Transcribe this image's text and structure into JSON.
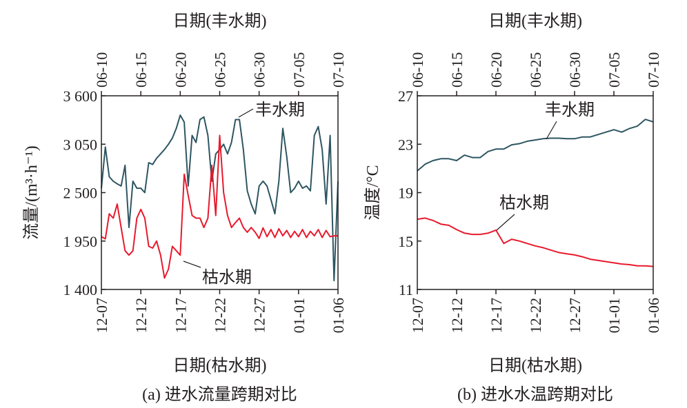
{
  "chart_data": [
    {
      "type": "line",
      "caption": "(a) 进水流量跨期对比",
      "ylabel": "流量/(m³·h⁻¹)",
      "xlabel_bottom": "日期(枯水期)",
      "xlabel_top": "日期(丰水期)",
      "ylim": [
        1400,
        3600
      ],
      "yticks": [
        1400,
        1950,
        2500,
        3050,
        3600
      ],
      "ytick_labels": [
        "1 400",
        "1 950",
        "2 500",
        "3 050",
        "3 600"
      ],
      "xlim_days": [
        0,
        30
      ],
      "xtick_days": [
        0,
        5,
        10,
        15,
        20,
        25,
        30
      ],
      "xtick_labels_top": [
        "06-10",
        "06-15",
        "06-20",
        "06-25",
        "06-30",
        "07-05",
        "07-10"
      ],
      "xtick_labels_bottom": [
        "12-07",
        "12-12",
        "12-17",
        "12-22",
        "12-27",
        "01-01",
        "01-06"
      ],
      "series": [
        {
          "name": "丰水期",
          "color": "#2d5561",
          "day_step": 0.5,
          "values": [
            2548,
            3018,
            2680,
            2630,
            2600,
            2575,
            2810,
            2104,
            2630,
            2550,
            2550,
            2500,
            2840,
            2820,
            2890,
            2940,
            2990,
            3050,
            3120,
            3230,
            3380,
            3300,
            2575,
            3150,
            3070,
            3330,
            3360,
            3150,
            2630,
            2940,
            2990,
            3050,
            2940,
            3070,
            3330,
            3330,
            2990,
            2520,
            2370,
            2260,
            2575,
            2630,
            2575,
            2420,
            2260,
            2630,
            3230,
            2910,
            2500,
            2550,
            2630,
            2550,
            2575,
            2520,
            3150,
            3250,
            2990,
            2370,
            3150,
            1500,
            2630
          ]
        },
        {
          "name": "枯水期",
          "color": "#e8192c",
          "day_step": 0.5,
          "values": [
            2000,
            1975,
            2260,
            2210,
            2370,
            2104,
            1840,
            1790,
            1840,
            2210,
            2310,
            2210,
            1890,
            1870,
            1950,
            1790,
            1530,
            1630,
            1890,
            1840,
            1790,
            2710,
            2470,
            2240,
            2210,
            2210,
            2104,
            2210,
            2810,
            2240,
            3150,
            2500,
            2240,
            2104,
            2160,
            2210,
            2104,
            2050,
            2104,
            2050,
            1980,
            2100,
            2000,
            2080,
            1990,
            2090,
            2010,
            2070,
            1990,
            2060,
            2000,
            2080,
            1990,
            2060,
            2010,
            2080,
            1990,
            2070,
            2000,
            2010,
            2010
          ]
        }
      ],
      "annotations": [
        "丰水期",
        "枯水期"
      ]
    },
    {
      "type": "line",
      "caption": "(b) 进水水温跨期对比",
      "ylabel": "温度/°C",
      "xlabel_bottom": "日期(枯水期)",
      "xlabel_top": "日期(丰水期)",
      "ylim": [
        11,
        27
      ],
      "yticks": [
        11,
        15,
        19,
        23,
        27
      ],
      "ytick_labels": [
        "11",
        "15",
        "19",
        "23",
        "27"
      ],
      "xlim_days": [
        0,
        30
      ],
      "xtick_days": [
        0,
        5,
        10,
        15,
        20,
        25,
        30
      ],
      "xtick_labels_top": [
        "06-10",
        "06-15",
        "06-20",
        "06-25",
        "06-30",
        "07-05",
        "07-10"
      ],
      "xtick_labels_bottom": [
        "12-07",
        "12-12",
        "12-17",
        "12-22",
        "12-27",
        "01-01",
        "01-06"
      ],
      "series": [
        {
          "name": "丰水期",
          "color": "#2d5561",
          "day_step": 1,
          "values": [
            20.8,
            21.35,
            21.65,
            21.8,
            21.8,
            21.65,
            22.1,
            21.9,
            21.9,
            22.4,
            22.6,
            22.6,
            22.95,
            23.05,
            23.25,
            23.35,
            23.45,
            23.5,
            23.5,
            23.45,
            23.45,
            23.6,
            23.6,
            23.8,
            24.0,
            24.2,
            24.0,
            24.3,
            24.5,
            25.05,
            24.85
          ]
        },
        {
          "name": "枯水期",
          "color": "#e8192c",
          "day_step": 1,
          "values": [
            16.8,
            16.9,
            16.7,
            16.4,
            16.3,
            15.95,
            15.65,
            15.55,
            15.55,
            15.65,
            15.9,
            14.8,
            15.15,
            15.0,
            14.8,
            14.6,
            14.45,
            14.25,
            14.05,
            13.95,
            13.85,
            13.7,
            13.5,
            13.4,
            13.3,
            13.2,
            13.1,
            13.05,
            12.95,
            12.95,
            12.9
          ]
        }
      ],
      "annotations": [
        "丰水期",
        "枯水期"
      ]
    }
  ]
}
